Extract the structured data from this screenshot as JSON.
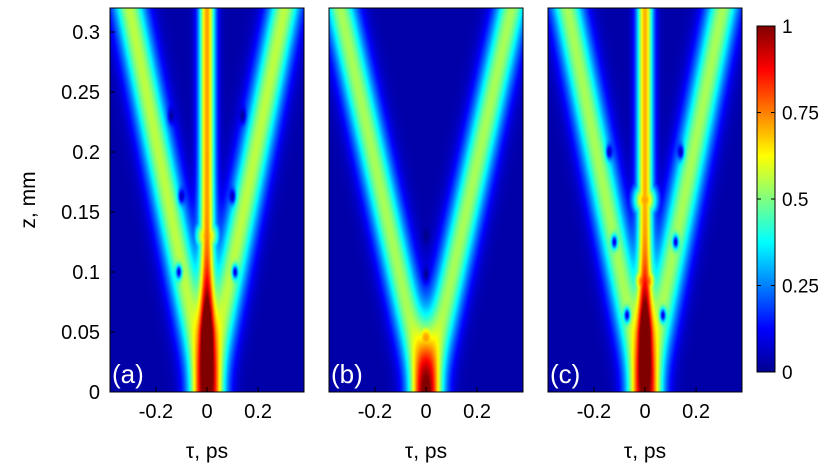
{
  "chart_data": {
    "type": "heatmap",
    "colormap": "jet",
    "xlabel": "τ, ps",
    "ylabel": "z, mm",
    "xlim": [
      -0.38,
      0.38
    ],
    "ylim": [
      0,
      0.32
    ],
    "yticks": [
      0,
      0.05,
      0.1,
      0.15,
      0.2,
      0.25,
      0.3
    ],
    "ytick_labels": [
      "0",
      "0.05",
      "0.1",
      "0.15",
      "0.2",
      "0.25",
      "0.3"
    ],
    "xticks": [
      -0.2,
      0,
      0.2
    ],
    "xtick_labels": [
      "-0.2",
      "0",
      "0.2"
    ],
    "colorbar": {
      "range": [
        0,
        1
      ],
      "ticks": [
        0,
        0.25,
        0.5,
        0.75,
        1
      ],
      "tick_labels": [
        "0",
        "0.25",
        "0.5",
        "0.75",
        "1"
      ]
    },
    "panels": [
      {
        "label": "(a)",
        "beam_half_width_ps": 0.065,
        "beam_spread_ps_per_mm": 0.95,
        "beam_level": 0.52,
        "central_channel_level": 0.8,
        "blobs": [
          {
            "tau": 0,
            "z": 0.008,
            "level": 1.0
          },
          {
            "tau": 0,
            "z": 0.066,
            "level": 0.9
          },
          {
            "tau": 0,
            "z": 0.13,
            "level": 0.72
          }
        ],
        "minima": [
          {
            "tau": -0.11,
            "z": 0.1
          },
          {
            "tau": 0.11,
            "z": 0.1
          },
          {
            "tau": -0.1,
            "z": 0.163
          },
          {
            "tau": 0.1,
            "z": 0.163
          },
          {
            "tau": -0.14,
            "z": 0.23
          },
          {
            "tau": 0.14,
            "z": 0.23
          }
        ]
      },
      {
        "label": "(b)",
        "beam_half_width_ps": 0.065,
        "beam_spread_ps_per_mm": 1.05,
        "beam_level": 0.5,
        "central_channel_level": 0.0,
        "blobs": [
          {
            "tau": 0,
            "z": 0.018,
            "level": 0.85
          },
          {
            "tau": 0,
            "z": 0.045,
            "level": 0.72
          }
        ],
        "minima": [
          {
            "tau": 0,
            "z": 0.098
          },
          {
            "tau": 0,
            "z": 0.13
          }
        ]
      },
      {
        "label": "(c)",
        "beam_half_width_ps": 0.065,
        "beam_spread_ps_per_mm": 0.95,
        "beam_level": 0.5,
        "central_channel_level": 0.78,
        "blobs": [
          {
            "tau": 0,
            "z": 0.035,
            "level": 1.0
          },
          {
            "tau": 0,
            "z": 0.092,
            "level": 0.85
          },
          {
            "tau": 0,
            "z": 0.16,
            "level": 0.72
          }
        ],
        "minima": [
          {
            "tau": -0.07,
            "z": 0.064
          },
          {
            "tau": 0.07,
            "z": 0.064
          },
          {
            "tau": -0.12,
            "z": 0.125
          },
          {
            "tau": 0.12,
            "z": 0.125
          },
          {
            "tau": -0.14,
            "z": 0.2
          },
          {
            "tau": 0.14,
            "z": 0.2
          }
        ]
      }
    ]
  }
}
